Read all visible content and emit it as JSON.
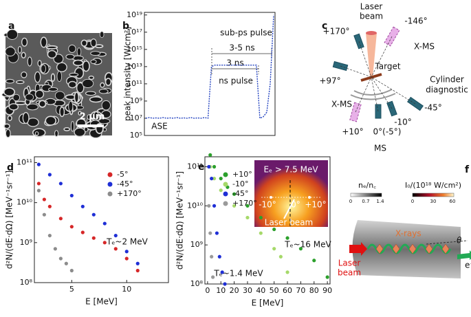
{
  "panels": {
    "a": {
      "label": "a",
      "scale_bar": "2 μm"
    },
    "c": {
      "label": "c",
      "texts": [
        "Laser",
        "beam",
        "-146°",
        "+170°",
        "X-MS",
        "Target",
        "Cylinder",
        "diagnostic",
        "+97°",
        "X-MS",
        "-45°",
        "-10°",
        "+10°",
        "0°(-5°)",
        "MS"
      ]
    },
    "f": {
      "label": "f",
      "ne_title": "nₑ/n꜀",
      "ne_ticks": [
        "0",
        "0.7",
        "1.4"
      ],
      "i_title": "I₀/(10¹⁸ W/cm²)",
      "i_ticks": [
        "0",
        "30",
        "60"
      ],
      "xrays": "X-rays",
      "laser": [
        "Laser",
        "beam"
      ],
      "electron": "e⁻",
      "theta": "θ"
    }
  },
  "chart_data": [
    {
      "type": "line",
      "label": "b",
      "ylabel": "peak intensity [W/cm²]",
      "yscale": "log",
      "color": "#1f3fbf",
      "values": [
        10000000.0,
        12000000.0,
        10000000.0,
        11000000.0,
        10000000.0,
        12000000.0,
        10000000.0,
        11000000.0,
        10000000.0,
        12000000.0,
        10000000.0,
        11000000.0,
        10000000.0,
        12000000.0,
        10000000.0,
        11000000.0,
        10000000.0,
        12000000.0,
        10000000.0,
        10000000000000.0,
        15000000000000.0,
        15000000000000.0,
        15000000000000.0,
        15000000000000.0,
        15000000000000.0,
        15000000000000.0,
        15000000000000.0,
        15000000000000.0,
        15000000000000.0,
        15000000000000.0,
        15000000000000.0,
        15000000000000.0,
        15000000000000.0,
        10000000.0,
        15000000.0,
        50000000.0,
        100000000000.0,
        1e+19
      ],
      "ylim": [
        100000.0,
        2e+19
      ],
      "yticks": [
        {
          "value": 100000.0,
          "label": "10⁵"
        },
        {
          "value": 10000000.0,
          "label": "10⁷"
        },
        {
          "value": 1000000000.0,
          "label": "10⁹"
        },
        {
          "value": 100000000000.0,
          "label": "10¹¹"
        },
        {
          "value": 10000000000000.0,
          "label": "10¹³"
        },
        {
          "value": 1000000000000000.0,
          "label": "10¹⁵"
        },
        {
          "value": 1e+17,
          "label": "10¹⁷"
        },
        {
          "value": 1e+19,
          "label": "10¹⁹"
        }
      ],
      "annotations": [
        "sub-ps pulse",
        "3-5 ns",
        "3 ns",
        "ns pulse",
        "ASE"
      ]
    },
    {
      "type": "scatter",
      "label": "d",
      "xlabel": "E [MeV]",
      "ylabel": "d²N/(dE·dΩ) [MeV⁻¹sr⁻¹]",
      "yscale": "log",
      "legend": "upper right",
      "xlim": [
        1.6,
        13.8
      ],
      "xticks": [
        5,
        10
      ],
      "ylim": [
        100000000.0,
        140000000000.0
      ],
      "yticks": [
        {
          "value": 100000000.0,
          "label": "10⁸"
        },
        {
          "value": 1000000000.0,
          "label": "10⁹"
        },
        {
          "value": 10000000000.0,
          "label": "10¹⁰"
        },
        {
          "value": 100000000000.0,
          "label": "10¹¹"
        }
      ],
      "series": [
        {
          "name": "-5°",
          "color": "#d62728",
          "x": [
            2,
            2.5,
            3,
            4,
            5,
            6,
            7,
            8,
            9,
            10,
            11
          ],
          "values": [
            30000000000.0,
            12000000000.0,
            8000000000.0,
            4000000000.0,
            2500000000.0,
            1800000000.0,
            1300000000.0,
            1000000000.0,
            700000000.0,
            400000000.0,
            200000000.0
          ]
        },
        {
          "name": "-45°",
          "color": "#1f2fd6",
          "x": [
            2,
            3,
            4,
            5,
            6,
            7,
            8,
            9,
            10,
            11
          ],
          "values": [
            90000000000.0,
            50000000000.0,
            30000000000.0,
            15000000000.0,
            8000000000.0,
            5000000000.0,
            3000000000.0,
            1500000000.0,
            600000000.0,
            300000000.0
          ]
        },
        {
          "name": "+170°",
          "color": "#8c8c8c",
          "x": [
            2,
            2.5,
            3,
            3.5,
            4,
            4.5,
            5
          ],
          "values": [
            20000000000.0,
            5000000000.0,
            1500000000.0,
            700000000.0,
            400000000.0,
            300000000.0,
            200000000.0
          ]
        }
      ],
      "annotations": [
        "Tₑ~2 MeV"
      ]
    },
    {
      "type": "scatter",
      "label": "e",
      "xlabel": "E [MeV]",
      "ylabel": "d²N/(dE·dΩ) [MeV⁻¹sr⁻¹]",
      "yscale": "log",
      "legend": "upper left",
      "xlim": [
        -2,
        92
      ],
      "xticks": [
        0,
        10,
        20,
        30,
        40,
        50,
        60,
        70,
        80,
        90
      ],
      "ylim": [
        100000000.0,
        180000000000.0
      ],
      "yticks": [
        {
          "value": 100000000.0,
          "label": "10⁸"
        },
        {
          "value": 1000000000.0,
          "label": "10⁹"
        },
        {
          "value": 10000000000.0,
          "label": "10¹⁰"
        },
        {
          "value": 100000000000.0,
          "label": "10¹¹"
        }
      ],
      "series": [
        {
          "name": "+10°",
          "color": "#2ca02c",
          "x": [
            2,
            5,
            10,
            15,
            20,
            30,
            40,
            50,
            60,
            70,
            80,
            90
          ],
          "values": [
            200000000000.0,
            100000000000.0,
            50000000000.0,
            30000000000.0,
            20000000000.0,
            10000000000.0,
            5000000000.0,
            2500000000.0,
            1500000000.0,
            800000000.0,
            400000000.0,
            150000000.0
          ]
        },
        {
          "name": "-10°",
          "color": "#a6d96a",
          "x": [
            2,
            5,
            10,
            20,
            30,
            40,
            50,
            55,
            60
          ],
          "values": [
            100000000000.0,
            50000000000.0,
            25000000000.0,
            10000000000.0,
            5000000000.0,
            2000000000.0,
            800000000.0,
            500000000.0,
            200000000.0
          ]
        },
        {
          "name": "-45°",
          "color": "#1f2fd6",
          "x": [
            1,
            3,
            5,
            7,
            9,
            11,
            13
          ],
          "values": [
            100000000000.0,
            50000000000.0,
            10000000000.0,
            2000000000.0,
            500000000.0,
            200000000.0,
            100000000.0
          ]
        },
        {
          "name": "+170°",
          "color": "#9a9a9a",
          "x": [
            1,
            2,
            3,
            4
          ],
          "values": [
            10000000000.0,
            2000000000.0,
            500000000.0,
            150000000.0
          ]
        }
      ],
      "annotations": [
        "Tₑ~16 MeV",
        "Tₑ~1.4 MeV"
      ],
      "inset": {
        "energy": "Eₑ > 7.5 MeV",
        "angles": [
          "-10°",
          "0°",
          "+10°"
        ],
        "beam": "Laser beam"
      }
    }
  ]
}
